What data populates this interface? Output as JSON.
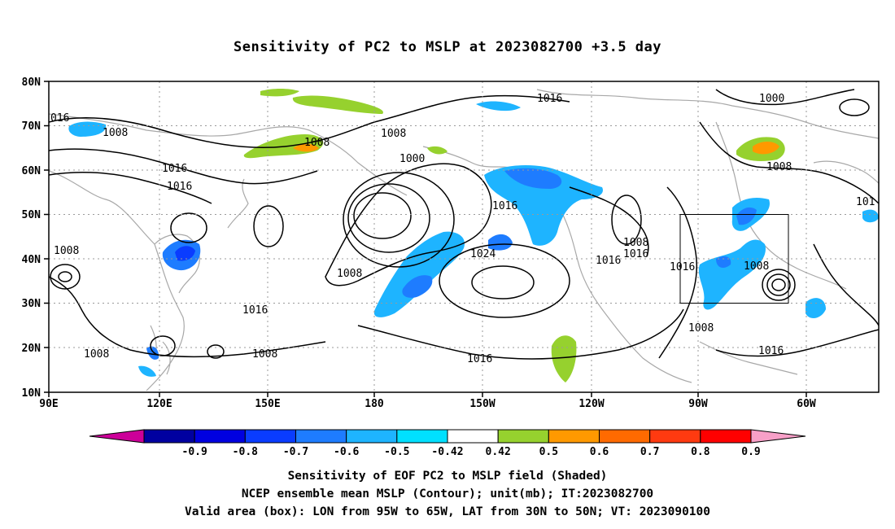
{
  "title": "Sensitivity of PC2 to MSLP at 2023082700 +3.5 day",
  "lat_labels": [
    "80N",
    "70N",
    "60N",
    "50N",
    "40N",
    "30N",
    "20N",
    "10N"
  ],
  "lon_labels": [
    "90E",
    "120E",
    "150E",
    "180",
    "150W",
    "120W",
    "90W",
    "60W"
  ],
  "contour_labels": [
    "016",
    "1008",
    "1008",
    "1016",
    "1016",
    "1008",
    "1016",
    "1008",
    "1008",
    "1016",
    "1008",
    "1000",
    "1008",
    "1016",
    "1024",
    "1016",
    "1016",
    "1008",
    "1016",
    "1016",
    "1008",
    "1000",
    "1008",
    "101",
    "1008",
    "1016"
  ],
  "colorbar": {
    "labels": [
      "-0.9",
      "-0.8",
      "-0.7",
      "-0.6",
      "-0.5",
      "-0.42",
      "0.42",
      "0.5",
      "0.6",
      "0.7",
      "0.8",
      "0.9"
    ],
    "colors": [
      "#cc0099",
      "#0000a0",
      "#0000e0",
      "#0a3cff",
      "#1e7cff",
      "#1eb4ff",
      "#00e0ff",
      "#ffffff",
      "#96d12e",
      "#ff9900",
      "#ff6a00",
      "#ff3a10",
      "#ff0000",
      "#f8a0c8"
    ]
  },
  "valid_box": {
    "lon": [
      "95W",
      "65W"
    ],
    "lat": [
      "30N",
      "50N"
    ]
  },
  "captions": [
    "Sensitivity of EOF PC2 to MSLP field (Shaded)",
    "NCEP ensemble mean MSLP (Contour); unit(mb); IT:2023082700",
    "Valid area (box): LON from 95W to 65W, LAT from 30N to 50N; VT: 2023090100"
  ]
}
